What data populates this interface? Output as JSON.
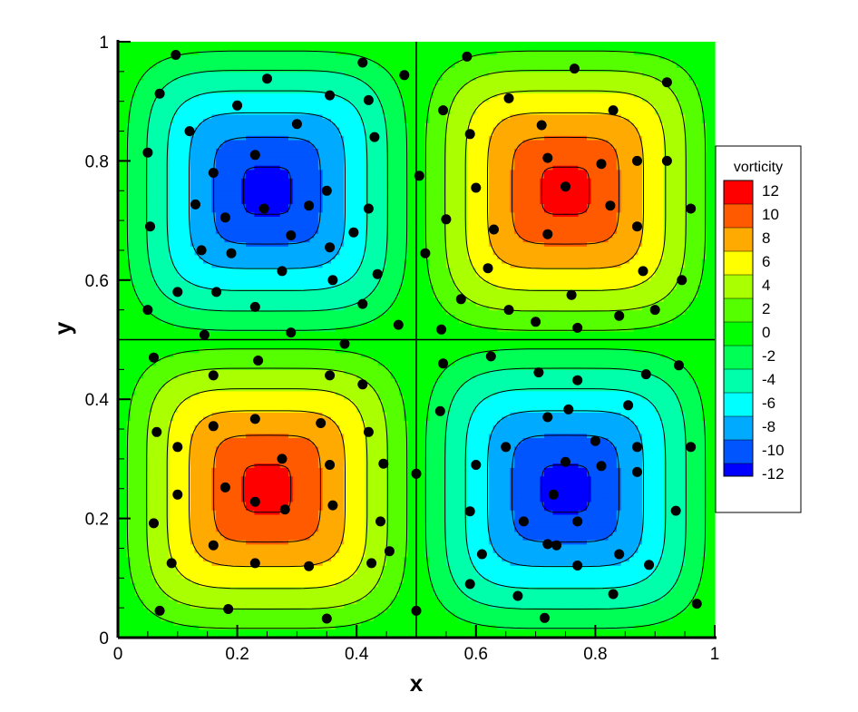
{
  "chart_data": {
    "type": "heatmap",
    "description_field": "vorticity",
    "xlabel": "x",
    "ylabel": "y",
    "xlim": [
      0,
      1
    ],
    "ylim": [
      0,
      1
    ],
    "x_ticks": [
      "0",
      "0.2",
      "0.4",
      "0.6",
      "0.8",
      "1"
    ],
    "y_ticks": [
      "0",
      "0.2",
      "0.4",
      "0.6",
      "0.8",
      "1"
    ],
    "legend": {
      "title": "vorticity",
      "placement": "right",
      "levels": [
        {
          "value": "12",
          "color": "#ff0000"
        },
        {
          "value": "10",
          "color": "#ff5a00"
        },
        {
          "value": "8",
          "color": "#ffaa00"
        },
        {
          "value": "6",
          "color": "#ffff00"
        },
        {
          "value": "4",
          "color": "#aaff00"
        },
        {
          "value": "2",
          "color": "#55ff00"
        },
        {
          "value": "0",
          "color": "#00ff00"
        },
        {
          "value": "-2",
          "color": "#00ff55"
        },
        {
          "value": "-4",
          "color": "#00ffaa"
        },
        {
          "value": "-6",
          "color": "#00ffff"
        },
        {
          "value": "-8",
          "color": "#00aaff"
        },
        {
          "value": "-10",
          "color": "#0055ff"
        },
        {
          "value": "-12",
          "color": "#0000ff"
        }
      ]
    },
    "vortices": [
      {
        "center": [
          0.25,
          0.75
        ],
        "sign": -1,
        "peak": -12
      },
      {
        "center": [
          0.75,
          0.75
        ],
        "sign": 1,
        "peak": 12
      },
      {
        "center": [
          0.25,
          0.25
        ],
        "sign": 1,
        "peak": 12
      },
      {
        "center": [
          0.75,
          0.25
        ],
        "sign": -1,
        "peak": -12
      }
    ],
    "contour_levels": [
      -12,
      -10,
      -8,
      -6,
      -4,
      -2,
      0,
      2,
      4,
      6,
      8,
      10,
      12
    ],
    "grid": false,
    "points": [
      [
        0.097,
        0.978
      ],
      [
        0.07,
        0.913
      ],
      [
        0.05,
        0.814
      ],
      [
        0.054,
        0.69
      ],
      [
        0.1,
        0.58
      ],
      [
        0.05,
        0.55
      ],
      [
        0.12,
        0.85
      ],
      [
        0.16,
        0.78
      ],
      [
        0.13,
        0.727
      ],
      [
        0.18,
        0.705
      ],
      [
        0.14,
        0.65
      ],
      [
        0.19,
        0.645
      ],
      [
        0.165,
        0.58
      ],
      [
        0.23,
        0.555
      ],
      [
        0.23,
        0.81
      ],
      [
        0.245,
        0.72
      ],
      [
        0.25,
        0.938
      ],
      [
        0.2,
        0.893
      ],
      [
        0.3,
        0.862
      ],
      [
        0.355,
        0.91
      ],
      [
        0.35,
        0.75
      ],
      [
        0.32,
        0.725
      ],
      [
        0.29,
        0.675
      ],
      [
        0.275,
        0.615
      ],
      [
        0.355,
        0.655
      ],
      [
        0.36,
        0.6
      ],
      [
        0.395,
        0.68
      ],
      [
        0.41,
        0.56
      ],
      [
        0.435,
        0.61
      ],
      [
        0.42,
        0.72
      ],
      [
        0.43,
        0.84
      ],
      [
        0.42,
        0.902
      ],
      [
        0.41,
        0.965
      ],
      [
        0.48,
        0.944
      ],
      [
        0.47,
        0.525
      ],
      [
        0.29,
        0.512
      ],
      [
        0.145,
        0.508
      ],
      [
        0.585,
        0.975
      ],
      [
        0.655,
        0.905
      ],
      [
        0.765,
        0.955
      ],
      [
        0.83,
        0.885
      ],
      [
        0.92,
        0.932
      ],
      [
        0.87,
        0.8
      ],
      [
        0.545,
        0.885
      ],
      [
        0.59,
        0.845
      ],
      [
        0.6,
        0.755
      ],
      [
        0.55,
        0.702
      ],
      [
        0.63,
        0.685
      ],
      [
        0.71,
        0.86
      ],
      [
        0.72,
        0.805
      ],
      [
        0.75,
        0.757
      ],
      [
        0.81,
        0.795
      ],
      [
        0.825,
        0.725
      ],
      [
        0.87,
        0.69
      ],
      [
        0.72,
        0.677
      ],
      [
        0.76,
        0.575
      ],
      [
        0.62,
        0.62
      ],
      [
        0.575,
        0.568
      ],
      [
        0.655,
        0.55
      ],
      [
        0.7,
        0.53
      ],
      [
        0.77,
        0.52
      ],
      [
        0.84,
        0.54
      ],
      [
        0.9,
        0.55
      ],
      [
        0.945,
        0.6
      ],
      [
        0.96,
        0.72
      ],
      [
        0.92,
        0.8
      ],
      [
        0.88,
        0.615
      ],
      [
        0.542,
        0.517
      ],
      [
        0.505,
        0.775
      ],
      [
        0.515,
        0.645
      ],
      [
        0.06,
        0.47
      ],
      [
        0.16,
        0.44
      ],
      [
        0.235,
        0.465
      ],
      [
        0.38,
        0.493
      ],
      [
        0.355,
        0.44
      ],
      [
        0.41,
        0.425
      ],
      [
        0.065,
        0.345
      ],
      [
        0.1,
        0.32
      ],
      [
        0.16,
        0.355
      ],
      [
        0.23,
        0.367
      ],
      [
        0.34,
        0.36
      ],
      [
        0.42,
        0.345
      ],
      [
        0.1,
        0.24
      ],
      [
        0.06,
        0.192
      ],
      [
        0.09,
        0.125
      ],
      [
        0.07,
        0.045
      ],
      [
        0.18,
        0.252
      ],
      [
        0.23,
        0.228
      ],
      [
        0.275,
        0.3
      ],
      [
        0.28,
        0.215
      ],
      [
        0.355,
        0.29
      ],
      [
        0.36,
        0.222
      ],
      [
        0.445,
        0.292
      ],
      [
        0.44,
        0.195
      ],
      [
        0.16,
        0.155
      ],
      [
        0.23,
        0.125
      ],
      [
        0.32,
        0.12
      ],
      [
        0.185,
        0.048
      ],
      [
        0.35,
        0.032
      ],
      [
        0.425,
        0.125
      ],
      [
        0.455,
        0.145
      ],
      [
        0.5,
        0.275
      ],
      [
        0.5,
        0.045
      ],
      [
        0.545,
        0.46
      ],
      [
        0.54,
        0.38
      ],
      [
        0.625,
        0.472
      ],
      [
        0.705,
        0.445
      ],
      [
        0.77,
        0.432
      ],
      [
        0.855,
        0.39
      ],
      [
        0.885,
        0.442
      ],
      [
        0.94,
        0.457
      ],
      [
        0.755,
        0.383
      ],
      [
        0.72,
        0.37
      ],
      [
        0.8,
        0.33
      ],
      [
        0.87,
        0.32
      ],
      [
        0.6,
        0.29
      ],
      [
        0.65,
        0.32
      ],
      [
        0.75,
        0.295
      ],
      [
        0.81,
        0.288
      ],
      [
        0.87,
        0.278
      ],
      [
        0.73,
        0.24
      ],
      [
        0.59,
        0.212
      ],
      [
        0.68,
        0.195
      ],
      [
        0.77,
        0.195
      ],
      [
        0.84,
        0.14
      ],
      [
        0.935,
        0.213
      ],
      [
        0.96,
        0.32
      ],
      [
        0.61,
        0.14
      ],
      [
        0.735,
        0.155
      ],
      [
        0.77,
        0.121
      ],
      [
        0.89,
        0.122
      ],
      [
        0.59,
        0.09
      ],
      [
        0.67,
        0.07
      ],
      [
        0.715,
        0.033
      ],
      [
        0.83,
        0.073
      ],
      [
        0.97,
        0.057
      ],
      [
        0.72,
        0.157
      ]
    ]
  }
}
